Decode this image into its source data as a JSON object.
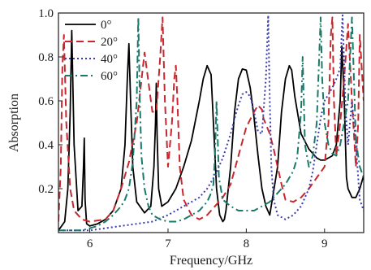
{
  "chart_data": {
    "type": "line",
    "xlabel": "Frequency/GHz",
    "ylabel": "Absorption",
    "xlim": [
      5.6,
      9.5
    ],
    "ylim": [
      0,
      1.0
    ],
    "xticks": [
      6,
      7,
      8,
      9
    ],
    "yticks": [
      0.2,
      0.4,
      0.6,
      0.8,
      1.0
    ],
    "x_tick_labels": [
      "6",
      "7",
      "8",
      "9"
    ],
    "y_tick_labels": [
      "0.2",
      "0.4",
      "0.6",
      "0.8",
      "1.0"
    ],
    "grid": false,
    "legend_position": "top-left",
    "series": [
      {
        "name": "0°",
        "color": "#000000",
        "style": "solid",
        "x": [
          5.6,
          5.68,
          5.72,
          5.75,
          5.77,
          5.8,
          5.85,
          5.9,
          5.92,
          5.93,
          5.94,
          5.96,
          6.0,
          6.1,
          6.2,
          6.3,
          6.4,
          6.45,
          6.48,
          6.5,
          6.52,
          6.55,
          6.6,
          6.7,
          6.78,
          6.82,
          6.84,
          6.85,
          6.86,
          6.88,
          6.92,
          7.0,
          7.1,
          7.2,
          7.3,
          7.4,
          7.45,
          7.5,
          7.55,
          7.58,
          7.62,
          7.66,
          7.7,
          7.72,
          7.74,
          7.8,
          7.85,
          7.9,
          7.95,
          8.0,
          8.05,
          8.1,
          8.15,
          8.2,
          8.25,
          8.3,
          8.4,
          8.45,
          8.5,
          8.55,
          8.58,
          8.62,
          8.7,
          8.8,
          8.9,
          8.95,
          9.0,
          9.1,
          9.15,
          9.2,
          9.22,
          9.25,
          9.28,
          9.3,
          9.35,
          9.4,
          9.45,
          9.5
        ],
        "y": [
          0.01,
          0.05,
          0.2,
          0.55,
          0.92,
          0.4,
          0.1,
          0.12,
          0.3,
          0.43,
          0.15,
          0.04,
          0.03,
          0.04,
          0.06,
          0.1,
          0.2,
          0.4,
          0.7,
          0.86,
          0.62,
          0.3,
          0.14,
          0.09,
          0.12,
          0.3,
          0.5,
          0.68,
          0.45,
          0.2,
          0.12,
          0.14,
          0.2,
          0.3,
          0.42,
          0.6,
          0.7,
          0.76,
          0.72,
          0.5,
          0.2,
          0.08,
          0.05,
          0.06,
          0.1,
          0.3,
          0.55,
          0.7,
          0.745,
          0.74,
          0.66,
          0.52,
          0.35,
          0.2,
          0.12,
          0.08,
          0.3,
          0.55,
          0.7,
          0.76,
          0.74,
          0.62,
          0.45,
          0.38,
          0.34,
          0.33,
          0.33,
          0.35,
          0.4,
          0.6,
          0.85,
          0.62,
          0.25,
          0.2,
          0.16,
          0.16,
          0.2,
          0.26
        ]
      },
      {
        "name": "20°",
        "color": "#c8282d",
        "style": "dashed",
        "x": [
          5.6,
          5.63,
          5.65,
          5.67,
          5.7,
          5.75,
          5.8,
          5.9,
          6.0,
          6.2,
          6.3,
          6.4,
          6.5,
          6.6,
          6.7,
          6.8,
          6.85,
          6.9,
          6.93,
          6.96,
          7.0,
          7.05,
          7.08,
          7.1,
          7.12,
          7.15,
          7.2,
          7.3,
          7.4,
          7.5,
          7.6,
          7.7,
          7.8,
          7.9,
          8.0,
          8.1,
          8.15,
          8.2,
          8.22,
          8.3,
          8.35,
          8.4,
          8.45,
          8.5,
          8.6,
          8.7,
          8.8,
          8.9,
          9.0,
          9.05,
          9.08,
          9.1,
          9.12,
          9.15,
          9.2,
          9.25,
          9.3,
          9.35,
          9.4,
          9.43,
          9.45,
          9.5
        ],
        "y": [
          0.05,
          0.3,
          0.75,
          0.9,
          0.5,
          0.2,
          0.1,
          0.06,
          0.05,
          0.06,
          0.1,
          0.2,
          0.32,
          0.5,
          0.82,
          0.55,
          0.55,
          0.8,
          0.98,
          0.6,
          0.3,
          0.5,
          0.7,
          0.76,
          0.6,
          0.3,
          0.15,
          0.08,
          0.06,
          0.08,
          0.12,
          0.16,
          0.22,
          0.35,
          0.48,
          0.55,
          0.58,
          0.56,
          0.52,
          0.45,
          0.38,
          0.3,
          0.22,
          0.15,
          0.14,
          0.16,
          0.2,
          0.25,
          0.3,
          0.5,
          0.9,
          0.98,
          0.6,
          0.35,
          0.5,
          0.7,
          0.95,
          0.6,
          0.3,
          0.5,
          0.9,
          0.6
        ]
      },
      {
        "name": "40°",
        "color": "#3b3bb0",
        "style": "dotted",
        "x": [
          5.6,
          5.7,
          5.8,
          6.0,
          6.2,
          6.4,
          6.6,
          6.8,
          7.0,
          7.1,
          7.2,
          7.3,
          7.4,
          7.5,
          7.6,
          7.7,
          7.8,
          7.85,
          7.9,
          7.95,
          8.0,
          8.05,
          8.1,
          8.15,
          8.2,
          8.25,
          8.28,
          8.3,
          8.32,
          8.35,
          8.4,
          8.5,
          8.6,
          8.7,
          8.8,
          8.85,
          8.9,
          8.95,
          9.0,
          9.1,
          9.15,
          9.2,
          9.23,
          9.27,
          9.3,
          9.35,
          9.4,
          9.45,
          9.5
        ],
        "y": [
          0.01,
          0.01,
          0.01,
          0.01,
          0.02,
          0.03,
          0.04,
          0.05,
          0.08,
          0.1,
          0.12,
          0.14,
          0.16,
          0.2,
          0.26,
          0.34,
          0.45,
          0.52,
          0.58,
          0.63,
          0.64,
          0.62,
          0.55,
          0.46,
          0.45,
          0.7,
          0.99,
          0.6,
          0.3,
          0.15,
          0.08,
          0.06,
          0.08,
          0.12,
          0.2,
          0.28,
          0.4,
          0.52,
          0.6,
          0.66,
          0.7,
          0.75,
          0.99,
          0.55,
          0.4,
          0.6,
          0.4,
          0.15,
          0.1
        ]
      },
      {
        "name": "60°",
        "color": "#1a7a6a",
        "style": "dashdot",
        "x": [
          5.6,
          5.7,
          5.8,
          5.9,
          6.0,
          6.1,
          6.2,
          6.3,
          6.4,
          6.45,
          6.5,
          6.55,
          6.6,
          6.62,
          6.64,
          6.66,
          6.7,
          6.75,
          6.8,
          6.9,
          7.0,
          7.1,
          7.2,
          7.3,
          7.4,
          7.5,
          7.55,
          7.58,
          7.6,
          7.62,
          7.65,
          7.7,
          7.8,
          7.9,
          8.0,
          8.1,
          8.2,
          8.3,
          8.4,
          8.5,
          8.6,
          8.65,
          8.7,
          8.72,
          8.75,
          8.8,
          8.85,
          8.9,
          8.95,
          8.97,
          9.0,
          9.05,
          9.1,
          9.15,
          9.2,
          9.25,
          9.3,
          9.35,
          9.38,
          9.4,
          9.45,
          9.5
        ],
        "y": [
          0.01,
          0.01,
          0.01,
          0.01,
          0.02,
          0.03,
          0.05,
          0.08,
          0.12,
          0.15,
          0.2,
          0.32,
          0.6,
          0.98,
          0.6,
          0.35,
          0.2,
          0.12,
          0.08,
          0.06,
          0.05,
          0.05,
          0.06,
          0.08,
          0.1,
          0.14,
          0.18,
          0.22,
          0.35,
          0.6,
          0.25,
          0.15,
          0.12,
          0.1,
          0.1,
          0.1,
          0.12,
          0.14,
          0.18,
          0.22,
          0.28,
          0.34,
          0.55,
          0.8,
          0.4,
          0.3,
          0.35,
          0.5,
          0.98,
          0.7,
          0.5,
          0.4,
          0.36,
          0.35,
          0.4,
          0.5,
          0.6,
          0.98,
          0.65,
          0.42,
          0.3,
          0.25
        ]
      }
    ]
  }
}
